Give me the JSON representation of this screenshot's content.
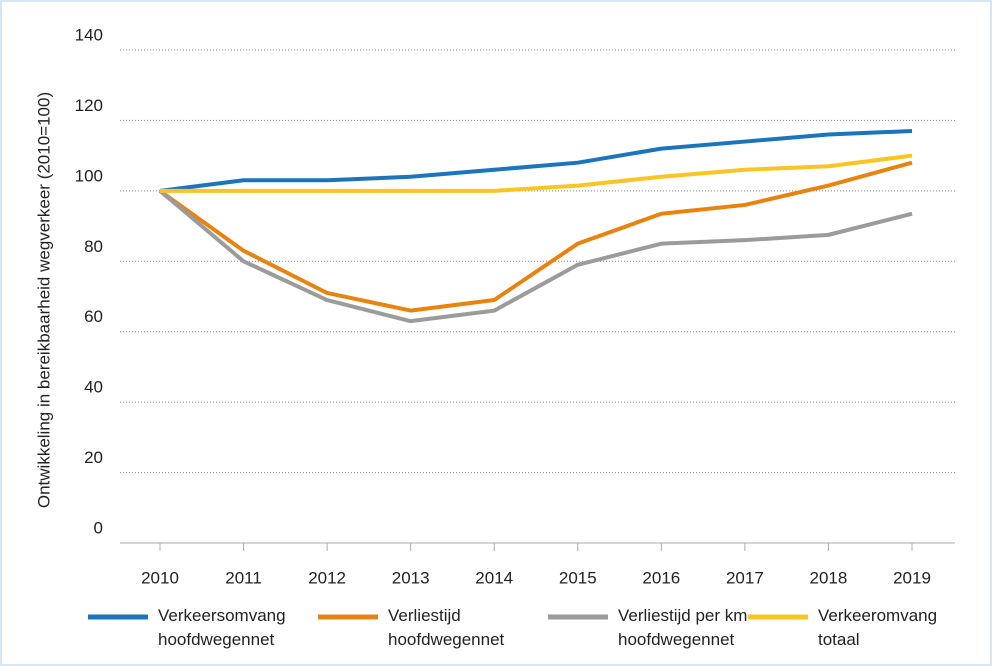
{
  "chart_data": {
    "type": "line",
    "y_label": "Ontwikkeling in bereikbaarheid wegverkeer (2010=100)",
    "categories": [
      "2010",
      "2011",
      "2012",
      "2013",
      "2014",
      "2015",
      "2016",
      "2017",
      "2018",
      "2019"
    ],
    "series": [
      {
        "name": "Verkeersomvang hoofdwegennet",
        "color": "#1b75bc",
        "values": [
          100,
          103,
          103,
          104,
          106,
          108,
          112,
          114,
          116,
          117
        ]
      },
      {
        "name": "Verliestijd hoofdwegennet",
        "color": "#e8830f",
        "values": [
          100,
          83,
          71,
          66,
          69,
          85,
          93.5,
          96,
          101.5,
          108
        ]
      },
      {
        "name": "Verliestijd per km hoofdwegennet",
        "color": "#9b9b9b",
        "values": [
          100,
          80,
          69,
          63,
          66,
          79,
          85,
          86,
          87.5,
          93.5
        ]
      },
      {
        "name": "Verkeeromvang totaal",
        "color": "#f8c525",
        "values": [
          100,
          100,
          100,
          100,
          100,
          101.5,
          104,
          106,
          107,
          110
        ]
      }
    ],
    "ylim": [
      0,
      140
    ],
    "yticks": [
      0,
      20,
      40,
      60,
      80,
      100,
      120,
      140
    ],
    "grid": true
  }
}
